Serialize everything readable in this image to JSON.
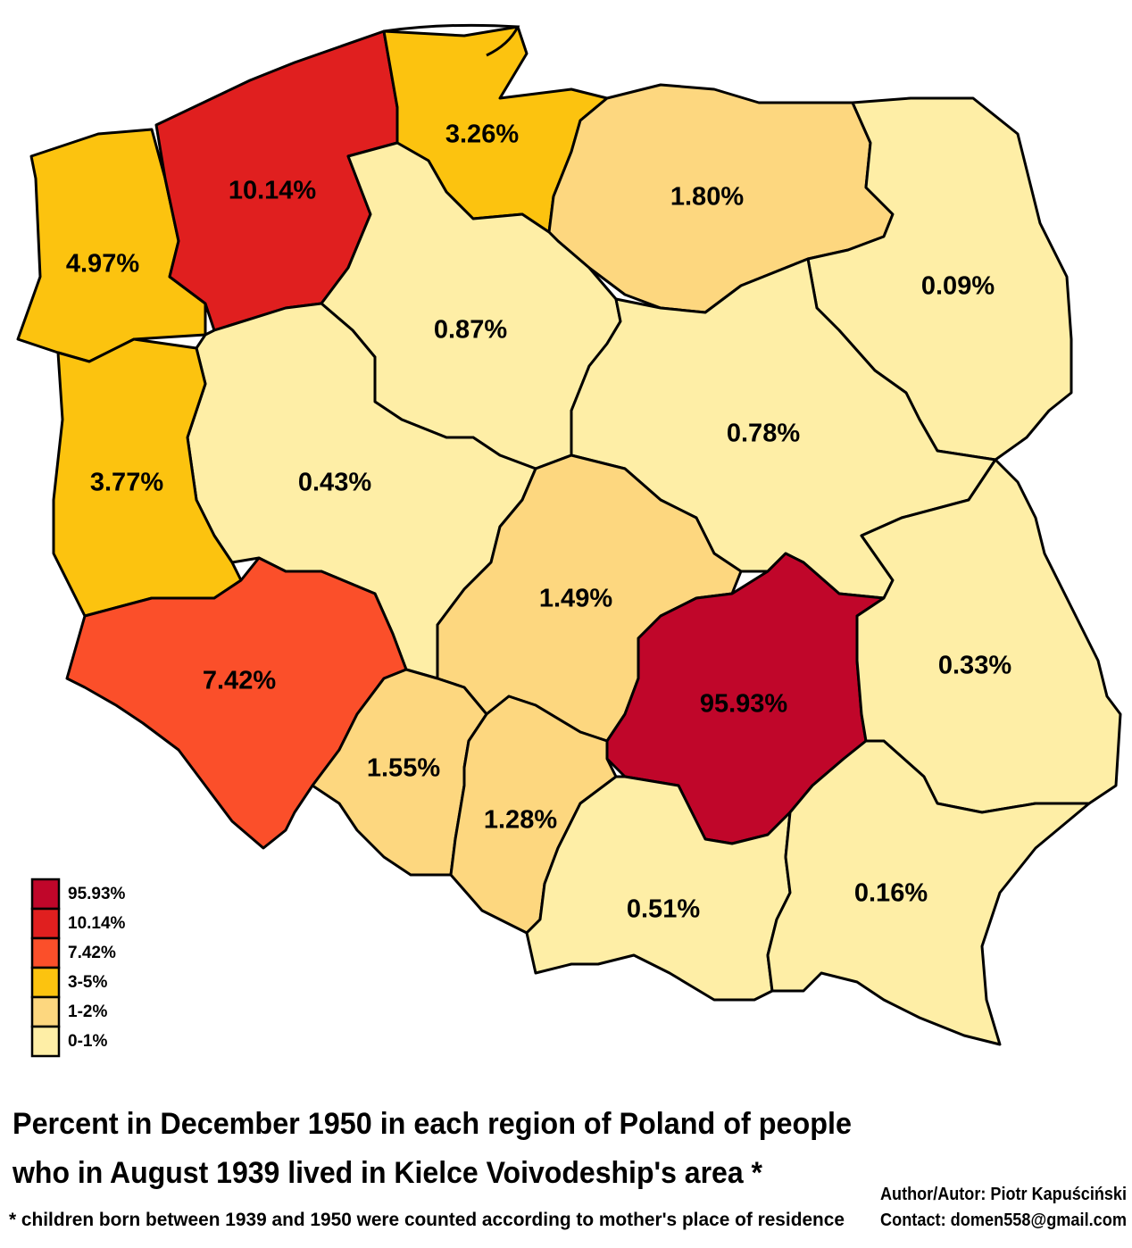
{
  "title_lines": [
    "Percent in December 1950 in each region of Poland of people",
    "who in August 1939 lived in Kielce Voivodeship's area *"
  ],
  "footnote": "* children born between 1939 and 1950 were counted according to mother's place of residence",
  "author": "Author/Autor: Piotr Kapuściński",
  "contact": "Contact: domen558@gmail.com",
  "regions": [
    {
      "label": "4.97%",
      "color": "#fcc30f"
    },
    {
      "label": "10.14%",
      "color": "#e01f1f"
    },
    {
      "label": "3.26%",
      "color": "#fcc30f"
    },
    {
      "label": "1.80%",
      "color": "#fdd77f"
    },
    {
      "label": "0.09%",
      "color": "#feeea6"
    },
    {
      "label": "0.87%",
      "color": "#feeea6"
    },
    {
      "label": "0.78%",
      "color": "#feeea6"
    },
    {
      "label": "0.43%",
      "color": "#feeea6"
    },
    {
      "label": "3.77%",
      "color": "#fcc30f"
    },
    {
      "label": "7.42%",
      "color": "#fb4f2a"
    },
    {
      "label": "1.49%",
      "color": "#fdd77f"
    },
    {
      "label": "95.93%",
      "color": "#c0062a"
    },
    {
      "label": "0.33%",
      "color": "#feeea6"
    },
    {
      "label": "1.55%",
      "color": "#fdd77f"
    },
    {
      "label": "1.28%",
      "color": "#fdd77f"
    },
    {
      "label": "0.51%",
      "color": "#feeea6"
    },
    {
      "label": "0.16%",
      "color": "#feeea6"
    }
  ],
  "legend": [
    {
      "label": "95.93%",
      "color": "#c0062a"
    },
    {
      "label": "10.14%",
      "color": "#e01f1f"
    },
    {
      "label": "7.42%",
      "color": "#fb4f2a"
    },
    {
      "label": "3-5%",
      "color": "#fcc30f"
    },
    {
      "label": "1-2%",
      "color": "#fdd77f"
    },
    {
      "label": "0-1%",
      "color": "#feeea6"
    }
  ]
}
